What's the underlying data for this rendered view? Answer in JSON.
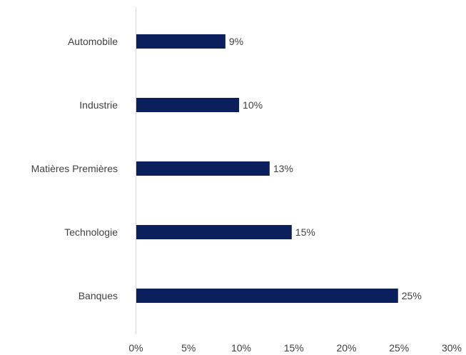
{
  "chart_data": {
    "type": "bar",
    "orientation": "horizontal",
    "categories": [
      "Automobile",
      "Industrie",
      "Matières Premières",
      "Technologie",
      "Banques"
    ],
    "values": [
      8.5,
      9.8,
      12.7,
      14.8,
      24.9
    ],
    "data_labels": [
      "9%",
      "10%",
      "13%",
      "15%",
      "25%"
    ],
    "x_ticks": [
      "0%",
      "5%",
      "10%",
      "15%",
      "20%",
      "25%",
      "30%"
    ],
    "xlim": [
      0,
      30
    ],
    "title": "",
    "xlabel": "",
    "ylabel": "",
    "grid": false,
    "legend": "none",
    "colors": {
      "bar": "#0a1f5c",
      "axis": "#d9d9d9",
      "text": "#404040"
    }
  }
}
